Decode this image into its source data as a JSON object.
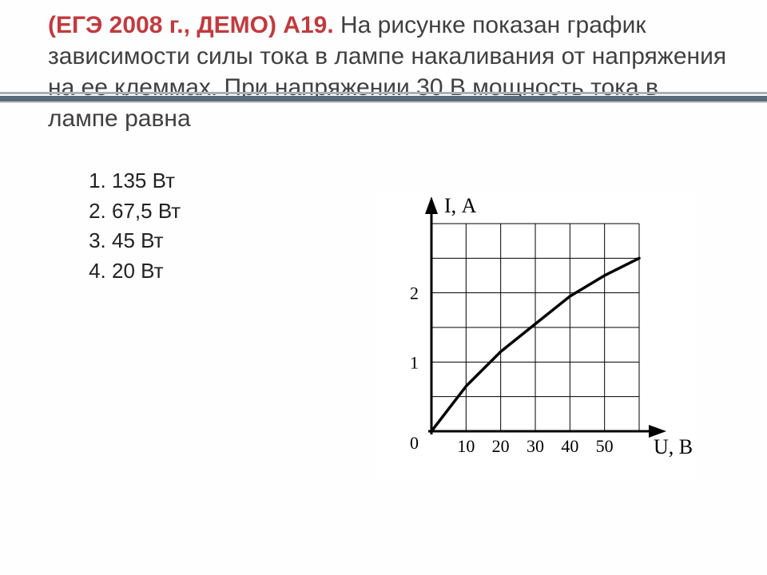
{
  "title": {
    "prefix": "(ЕГЭ 2008 г., ДЕМО) А19.",
    "text_part1": " На рисунке показан график зависимости силы тока в лампе накаливания от напряжения на ее клеммах. При напряжении 30 В мощность тока в лампе равна",
    "prefix_color": "#c23a3e",
    "text_color": "#404040",
    "fontsize": 30
  },
  "answers": {
    "items": [
      "135 Вт",
      "67,5 Вт",
      "45 Вт",
      "20 Вт"
    ],
    "fontsize": 26,
    "color": "#222222"
  },
  "accent_bar": {
    "colors": [
      "#a9b0b7",
      "#596a7b",
      "#c4c9cd"
    ]
  },
  "graph": {
    "type": "line",
    "x_label": "U, B",
    "y_label": "I, А",
    "x_ticks": [
      10,
      20,
      30,
      40,
      50
    ],
    "y_ticks": [
      1,
      2
    ],
    "origin_label": "0",
    "xlim": [
      0,
      60
    ],
    "ylim": [
      0,
      3
    ],
    "grid_x_step": 10,
    "grid_y_step": 0.5,
    "curve_points": [
      {
        "x": 0,
        "y": 0
      },
      {
        "x": 10,
        "y": 0.65
      },
      {
        "x": 20,
        "y": 1.15
      },
      {
        "x": 30,
        "y": 1.55
      },
      {
        "x": 40,
        "y": 1.95
      },
      {
        "x": 50,
        "y": 2.25
      },
      {
        "x": 60,
        "y": 2.5
      }
    ],
    "axis_color": "#000000",
    "grid_color": "#000000",
    "curve_color": "#000000",
    "axis_width": 3,
    "grid_width": 1,
    "curve_width": 3.5,
    "label_fontsize": 26,
    "tick_fontsize": 22,
    "font_family": "Times New Roman, serif"
  }
}
